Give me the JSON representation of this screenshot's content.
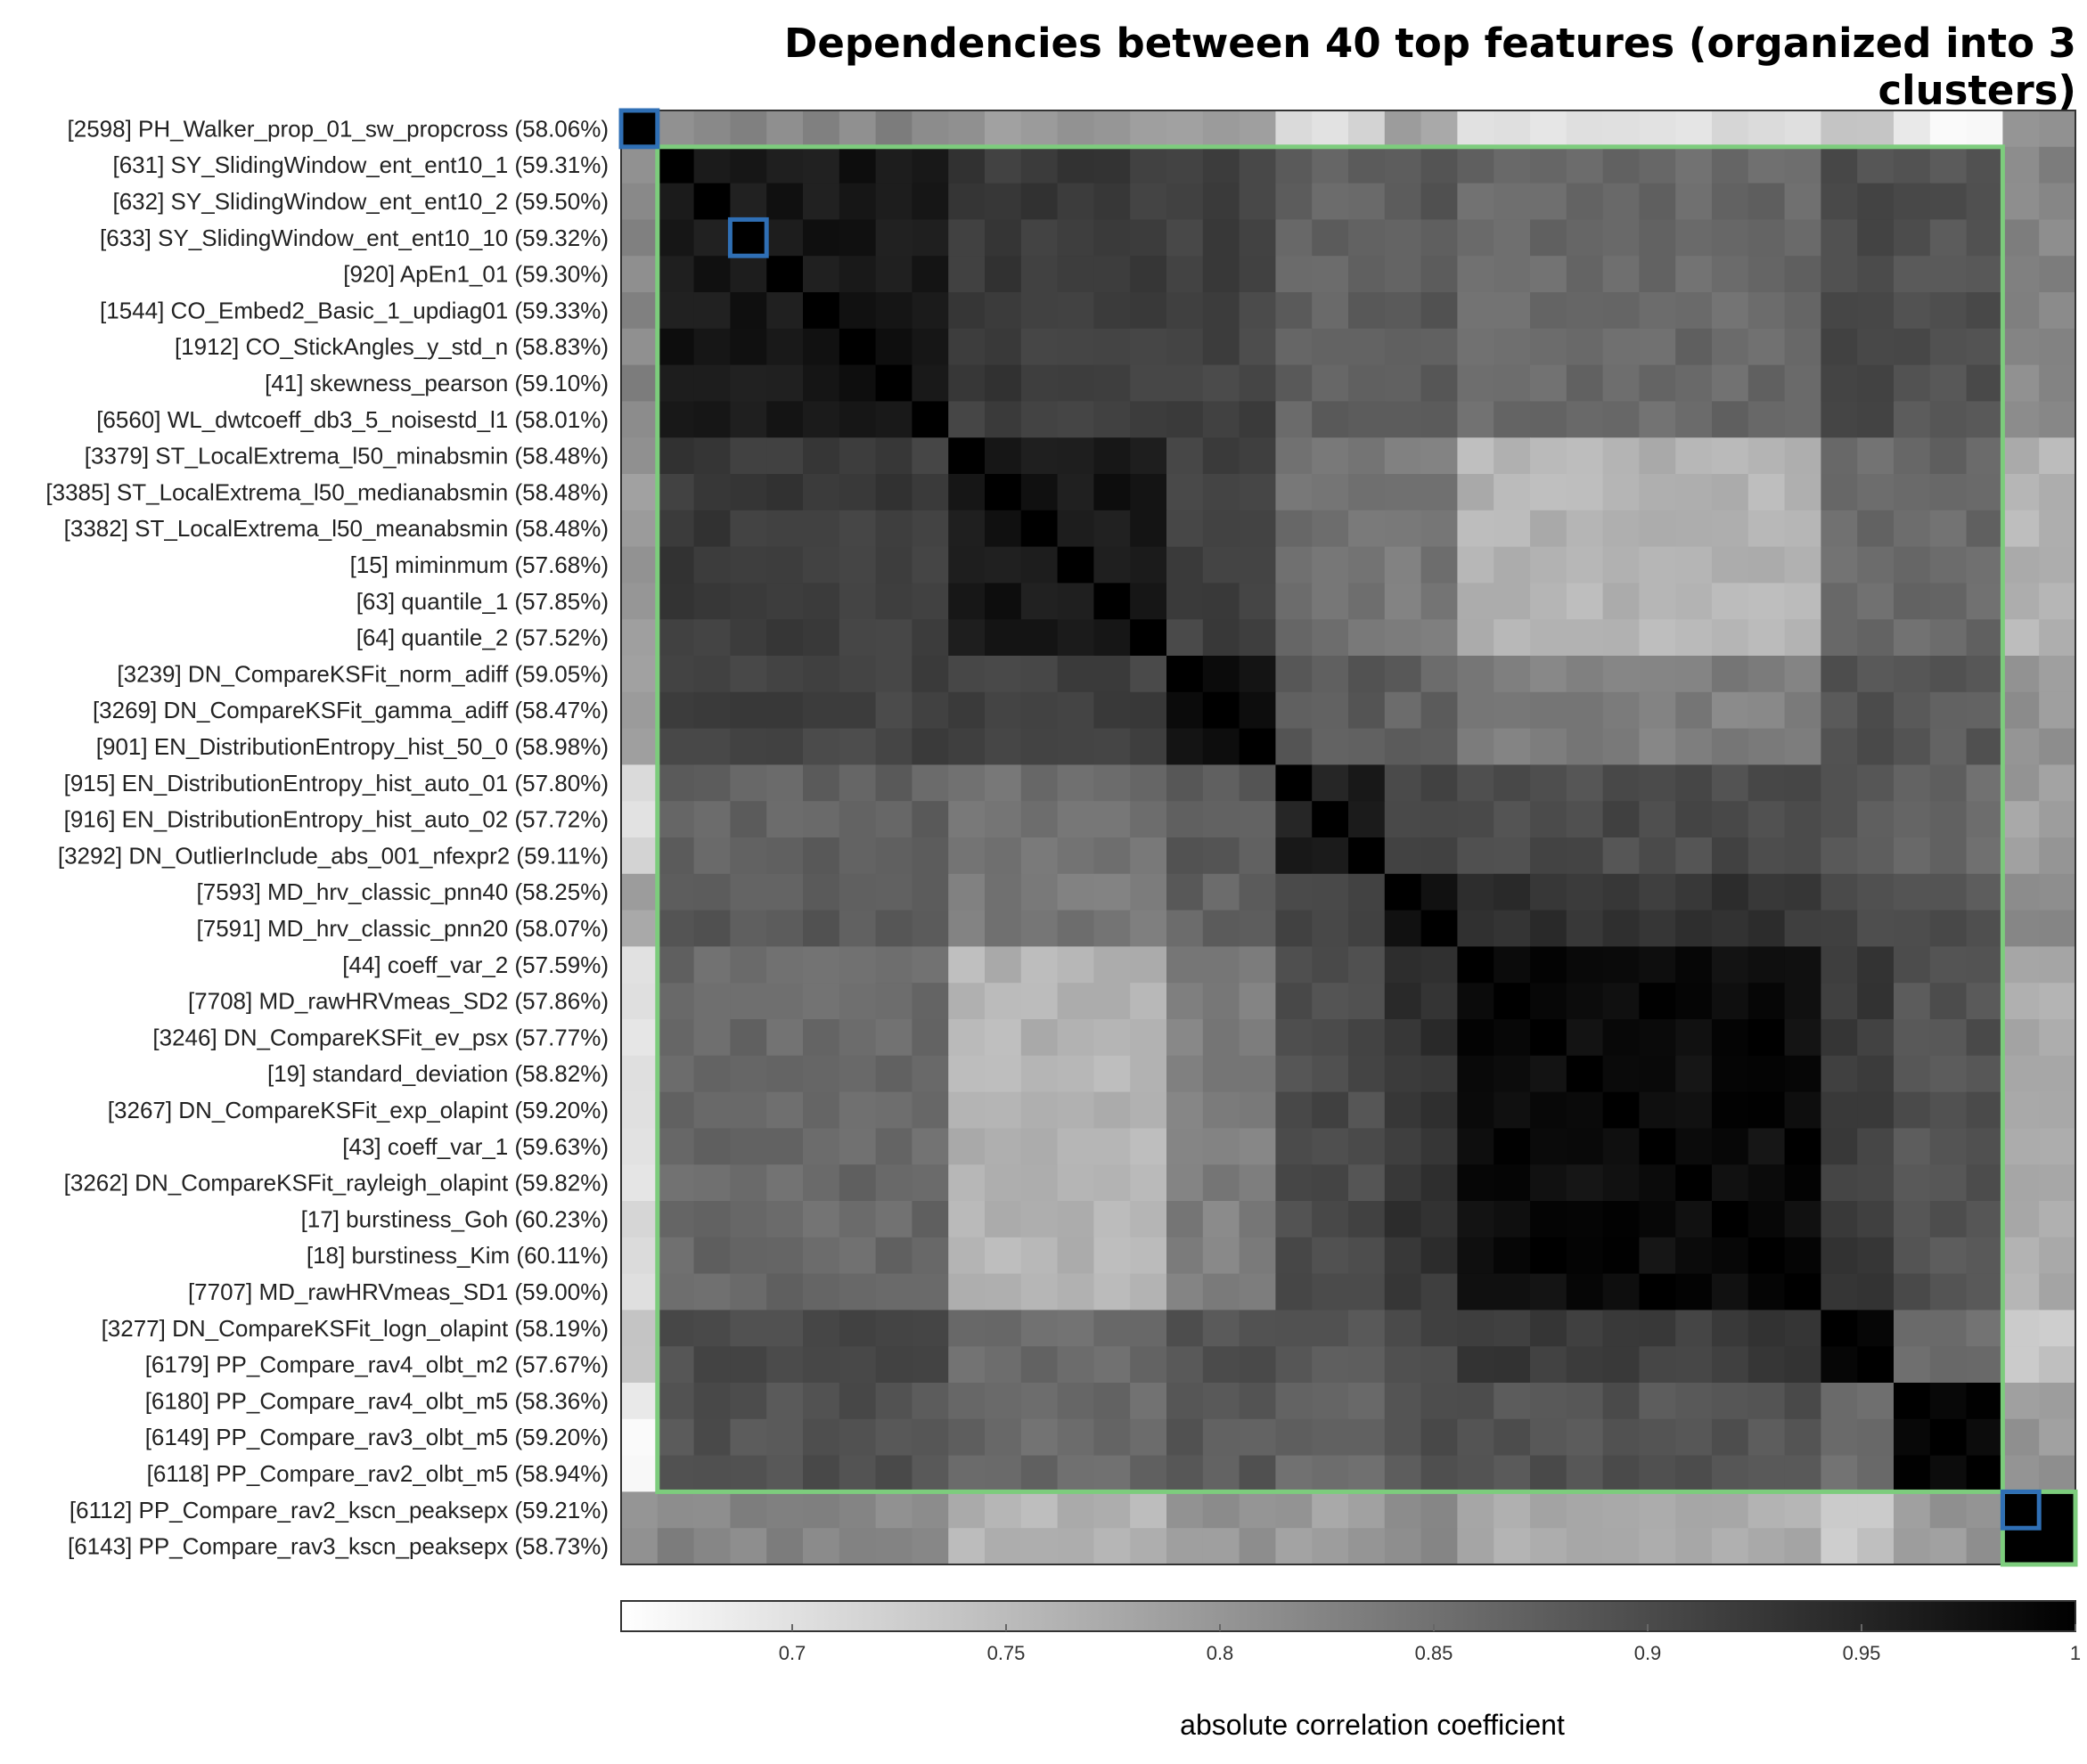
{
  "chart_data": {
    "type": "heatmap",
    "title": "Dependencies between 40 top features (organized into 3 clusters)",
    "row_labels": [
      "[2598] PH_Walker_prop_01_sw_propcross (58.06%)",
      "[631] SY_SlidingWindow_ent_ent10_1 (59.31%)",
      "[632] SY_SlidingWindow_ent_ent10_2 (59.50%)",
      "[633] SY_SlidingWindow_ent_ent10_10 (59.32%)",
      "[920] ApEn1_01 (59.30%)",
      "[1544] CO_Embed2_Basic_1_updiag01 (59.33%)",
      "[1912] CO_StickAngles_y_std_n (58.83%)",
      "[41] skewness_pearson (59.10%)",
      "[6560] WL_dwtcoeff_db3_5_noisestd_l1 (58.01%)",
      "[3379] ST_LocalExtrema_l50_minabsmin (58.48%)",
      "[3385] ST_LocalExtrema_l50_medianabsmin (58.48%)",
      "[3382] ST_LocalExtrema_l50_meanabsmin (58.48%)",
      "[15] miminmum (57.68%)",
      "[63] quantile_1 (57.85%)",
      "[64] quantile_2 (57.52%)",
      "[3239] DN_CompareKSFit_norm_adiff (59.05%)",
      "[3269] DN_CompareKSFit_gamma_adiff (58.47%)",
      "[901] EN_DistributionEntropy_hist_50_0 (58.98%)",
      "[915] EN_DistributionEntropy_hist_auto_01 (57.80%)",
      "[916] EN_DistributionEntropy_hist_auto_02 (57.72%)",
      "[3292] DN_OutlierInclude_abs_001_nfexpr2 (59.11%)",
      "[7593] MD_hrv_classic_pnn40 (58.25%)",
      "[7591] MD_hrv_classic_pnn20 (58.07%)",
      "[44] coeff_var_2 (57.59%)",
      "[7708] MD_rawHRVmeas_SD2 (57.86%)",
      "[3246] DN_CompareKSFit_ev_psx (57.77%)",
      "[19] standard_deviation (58.82%)",
      "[3267] DN_CompareKSFit_exp_olapint (59.20%)",
      "[43] coeff_var_1 (59.63%)",
      "[3262] DN_CompareKSFit_rayleigh_olapint (59.82%)",
      "[17] burstiness_Goh (60.23%)",
      "[18] burstiness_Kim (60.11%)",
      "[7707] MD_rawHRVmeas_SD1 (59.00%)",
      "[3277] DN_CompareKSFit_logn_olapint (58.19%)",
      "[6179] PP_Compare_rav4_olbt_m2 (57.67%)",
      "[6180] PP_Compare_rav4_olbt_m5 (58.36%)",
      "[6149] PP_Compare_rav3_olbt_m5 (59.20%)",
      "[6118] PP_Compare_rav2_olbt_m5 (58.94%)",
      "[6112] PP_Compare_rav2_kscn_peaksepx (59.21%)",
      "[6143] PP_Compare_rav3_kscn_peaksepx (58.73%)"
    ],
    "groups": [
      0,
      1,
      1,
      1,
      1,
      1,
      1,
      1,
      1,
      2,
      2,
      2,
      2,
      2,
      2,
      3,
      3,
      3,
      4,
      4,
      4,
      5,
      5,
      6,
      6,
      6,
      6,
      6,
      6,
      6,
      6,
      6,
      6,
      7,
      7,
      8,
      8,
      8,
      9,
      9
    ],
    "group_corr": [
      [
        1.0,
        0.82,
        0.8,
        0.79,
        0.71,
        0.78,
        0.7,
        0.74,
        0.68,
        0.8
      ],
      [
        0.82,
        0.97,
        0.92,
        0.91,
        0.87,
        0.88,
        0.86,
        0.9,
        0.89,
        0.82
      ],
      [
        0.8,
        0.92,
        0.97,
        0.91,
        0.85,
        0.84,
        0.76,
        0.86,
        0.86,
        0.76
      ],
      [
        0.79,
        0.91,
        0.91,
        0.985,
        0.88,
        0.87,
        0.83,
        0.89,
        0.88,
        0.8
      ],
      [
        0.71,
        0.87,
        0.85,
        0.88,
        0.96,
        0.91,
        0.9,
        0.88,
        0.86,
        0.79
      ],
      [
        0.78,
        0.88,
        0.84,
        0.87,
        0.91,
        0.985,
        0.93,
        0.9,
        0.89,
        0.82
      ],
      [
        0.7,
        0.86,
        0.76,
        0.83,
        0.9,
        0.93,
        0.985,
        0.92,
        0.89,
        0.77
      ],
      [
        0.74,
        0.9,
        0.86,
        0.89,
        0.88,
        0.9,
        0.92,
        1.0,
        0.86,
        0.74
      ],
      [
        0.68,
        0.89,
        0.86,
        0.88,
        0.86,
        0.89,
        0.89,
        0.86,
        0.985,
        0.8
      ],
      [
        0.8,
        0.82,
        0.76,
        0.8,
        0.79,
        0.82,
        0.77,
        0.74,
        0.8,
        0.99
      ]
    ],
    "colorbar": {
      "min": 0.66,
      "max": 1,
      "ticks": [
        "0.7",
        "0.75",
        "0.8",
        "0.85",
        "0.9",
        "0.95",
        "1"
      ],
      "tick_values": [
        0.7,
        0.75,
        0.8,
        0.85,
        0.9,
        0.95,
        1.0
      ],
      "label": "absolute correlation coefficient",
      "colormap": "white-to-black"
    },
    "clusters": [
      {
        "start": 1,
        "end": 37,
        "color": "#7dcc7d"
      },
      {
        "start": 38,
        "end": 39,
        "color": "#7dcc7d"
      }
    ],
    "medoids": [
      0,
      3,
      38
    ],
    "medoid_color": "#2f6fb5"
  }
}
